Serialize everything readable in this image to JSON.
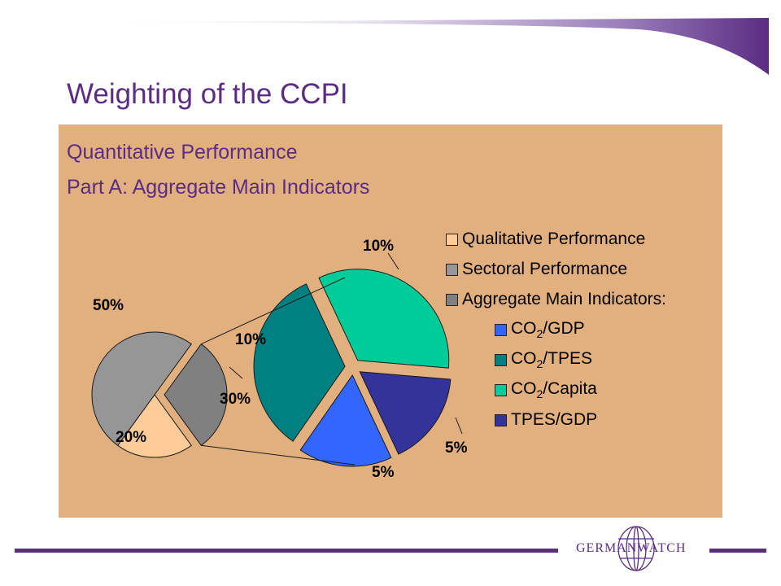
{
  "slide": {
    "title": "Weighting of the CCPI",
    "subtitle_1": "Quantitative Performance",
    "subtitle_2": "Part A: Aggregate Main Indicators",
    "logo_text": "GERMANWATCH"
  },
  "colors": {
    "brand_purple": "#5b2c83",
    "panel_background": "#e2b07e"
  },
  "chart_data": [
    {
      "type": "pie",
      "name": "overall-weighting",
      "categories": [
        "Qualitative Performance",
        "Sectoral Performance",
        "Aggregate Main Indicators:"
      ],
      "values": [
        20,
        50,
        30
      ],
      "labels": [
        "20%",
        "50%",
        "30%"
      ],
      "colors": [
        "#ffcc99",
        "#969696",
        "#808080"
      ],
      "exploded": "Aggregate Main Indicators:"
    },
    {
      "type": "pie",
      "name": "aggregate-main-indicators-breakdown",
      "categories": [
        "CO2/GDP",
        "CO2/TPES",
        "CO2/Capita",
        "TPES/GDP"
      ],
      "legend_labels": [
        {
          "base": "CO",
          "sub": "2",
          "rest": "/GDP"
        },
        {
          "base": "CO",
          "sub": "2",
          "rest": "/TPES"
        },
        {
          "base": "CO",
          "sub": "2",
          "rest": "/Capita"
        },
        {
          "base": "TPES/GDP",
          "sub": "",
          "rest": ""
        }
      ],
      "values": [
        5,
        10,
        10,
        5
      ],
      "labels": [
        "5%",
        "10%",
        "10%",
        "5%"
      ],
      "colors": [
        "#3366ff",
        "#008080",
        "#00cc99",
        "#333399"
      ]
    }
  ],
  "legend": {
    "placement": "right",
    "items": [
      {
        "label": "Qualitative Performance",
        "color": "#ffcc99"
      },
      {
        "label": "Sectoral Performance",
        "color": "#969696"
      },
      {
        "label": "Aggregate Main Indicators:",
        "color": "#808080"
      }
    ]
  }
}
